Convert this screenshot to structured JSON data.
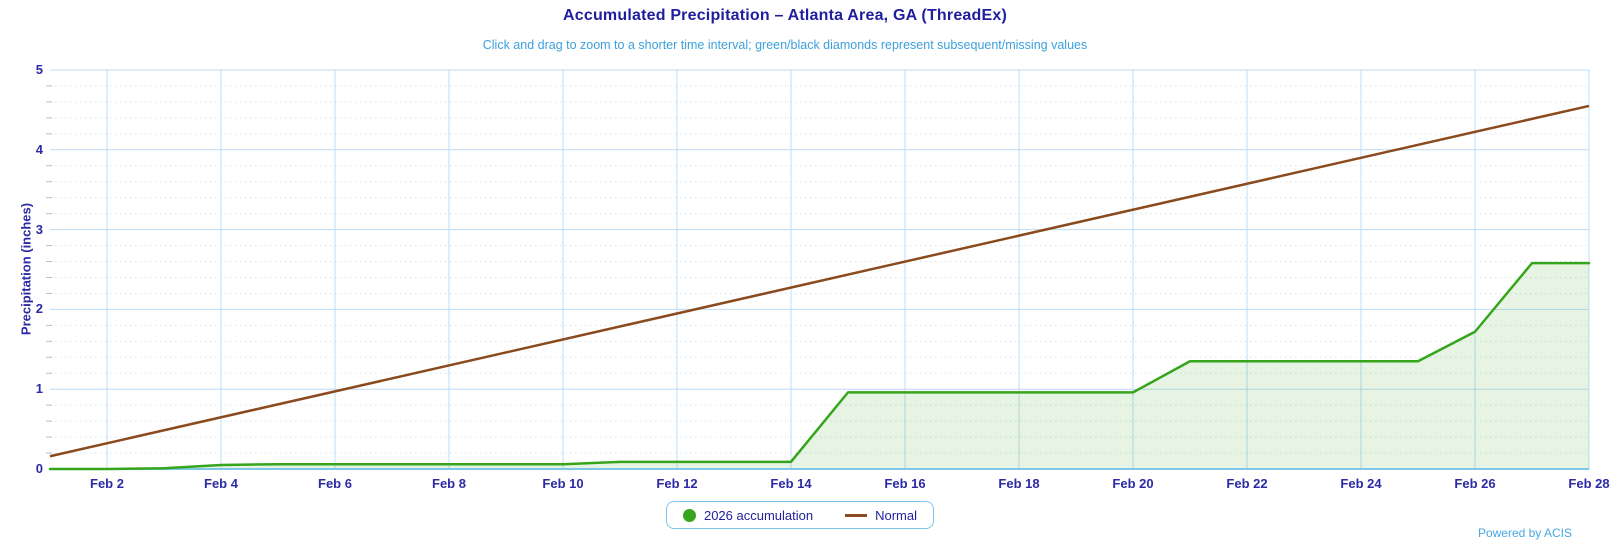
{
  "header": {
    "title": "Accumulated Precipitation – Atlanta Area, GA (ThreadEx)",
    "subtitle": "Click and drag to zoom to a shorter time interval; green/black diamonds represent subsequent/missing values"
  },
  "footer": {
    "credit": "Powered by ACIS"
  },
  "legend": {
    "items": [
      {
        "label": "2026 accumulation",
        "marker": "circle",
        "color": "#35a51c"
      },
      {
        "label": "Normal",
        "marker": "line",
        "color": "#8b4a1e"
      }
    ]
  },
  "colors": {
    "title_text": "#1e1e9e",
    "subtitle_text": "#3da0dc",
    "axis_text": "#2b2ba6",
    "major_grid": "#bedcf4",
    "minor_grid": "#d9e3ee",
    "minor_tick": "#b0bfce",
    "x_axis_line": "#7cc8e6",
    "accumulation_line": "#35a51c",
    "accumulation_fill_rgba": "rgba(58,162,30,0.12)",
    "normal_line": "#8b4a1e",
    "legend_border": "#7ec4ea",
    "credit_text": "#49a8e4"
  },
  "chart_data": {
    "type": "area",
    "title": "Accumulated Precipitation – Atlanta Area, GA (ThreadEx)",
    "xlabel": "",
    "ylabel": "Precipitation (inches)",
    "ylim": [
      0,
      5
    ],
    "y_major_ticks": [
      0,
      1,
      2,
      3,
      4,
      5
    ],
    "y_minor_step": 0.2,
    "x_month": "February 2026",
    "x_domain_days": [
      1,
      28
    ],
    "x_ticks": [
      {
        "day": 2,
        "label": "Feb 2"
      },
      {
        "day": 4,
        "label": "Feb 4"
      },
      {
        "day": 6,
        "label": "Feb 6"
      },
      {
        "day": 8,
        "label": "Feb 8"
      },
      {
        "day": 10,
        "label": "Feb 10"
      },
      {
        "day": 12,
        "label": "Feb 12"
      },
      {
        "day": 14,
        "label": "Feb 14"
      },
      {
        "day": 16,
        "label": "Feb 16"
      },
      {
        "day": 18,
        "label": "Feb 18"
      },
      {
        "day": 20,
        "label": "Feb 20"
      },
      {
        "day": 22,
        "label": "Feb 22"
      },
      {
        "day": 24,
        "label": "Feb 24"
      },
      {
        "day": 26,
        "label": "Feb 26"
      },
      {
        "day": 28,
        "label": "Feb 28"
      }
    ],
    "grid": {
      "major": "solid light blue",
      "minor": "dotted",
      "legend_position": "bottom center"
    },
    "series": [
      {
        "name": "2026 accumulation",
        "style": "area",
        "days": [
          1,
          2,
          3,
          4,
          5,
          6,
          7,
          8,
          9,
          10,
          11,
          12,
          13,
          14,
          15,
          16,
          17,
          18,
          19,
          20,
          21,
          22,
          23,
          24,
          25,
          26,
          27,
          28
        ],
        "values": [
          0,
          0,
          0.01,
          0.05,
          0.06,
          0.06,
          0.06,
          0.06,
          0.06,
          0.06,
          0.09,
          0.09,
          0.09,
          0.09,
          0.96,
          0.96,
          0.96,
          0.96,
          0.96,
          0.96,
          1.35,
          1.35,
          1.35,
          1.35,
          1.35,
          1.72,
          2.58,
          2.58
        ]
      },
      {
        "name": "Normal",
        "style": "line",
        "days": [
          1,
          28
        ],
        "values": [
          0.16,
          4.55
        ]
      }
    ]
  }
}
